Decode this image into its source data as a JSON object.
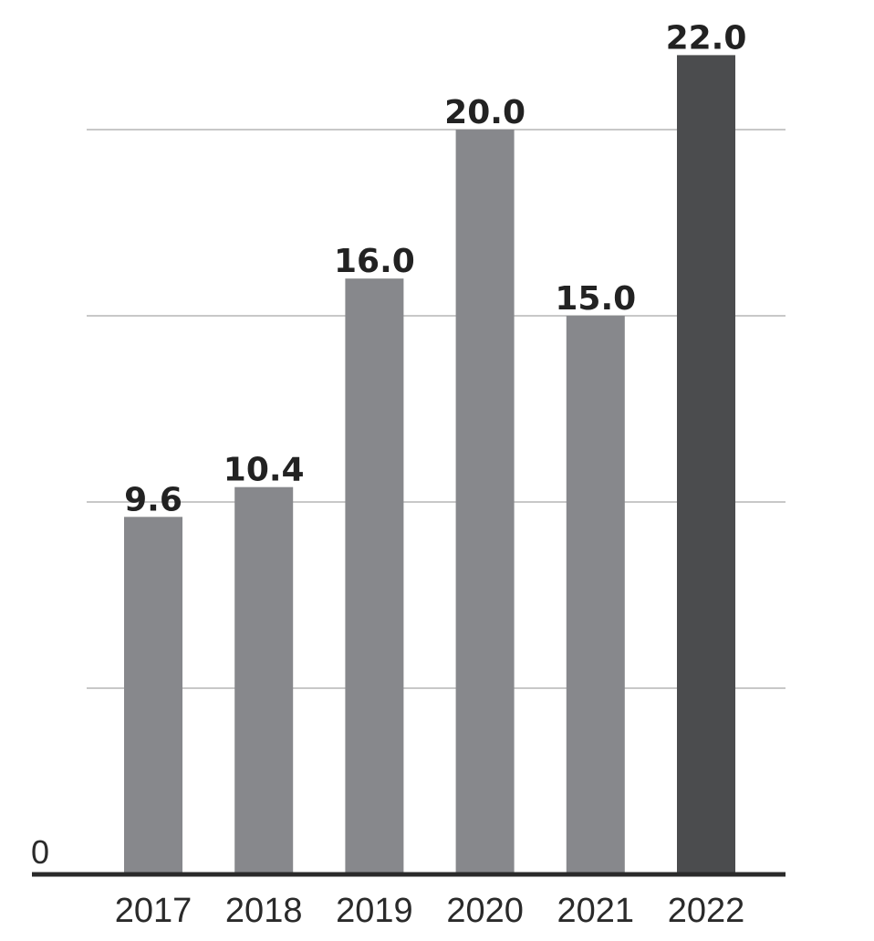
{
  "chart_data": {
    "type": "bar",
    "categories": [
      "2017",
      "2018",
      "2019",
      "2020",
      "2021",
      "2022"
    ],
    "values": [
      9.6,
      10.4,
      16.0,
      20.0,
      15.0,
      22.0
    ],
    "value_labels": [
      "9.6",
      "10.4",
      "16.0",
      "20.0",
      "15.0",
      "22.0"
    ],
    "title": "",
    "xlabel": "",
    "ylabel": "",
    "ylim": [
      0,
      20
    ],
    "gridlines": [
      5,
      10,
      15,
      20
    ],
    "y_tick_labels": [
      "0"
    ],
    "grid": true,
    "legend": "none",
    "colors": {
      "bar": "#87888c",
      "highlight_bar": "#4b4c4e",
      "grid": "#c8c8c8",
      "axis": "#2a2a2a"
    },
    "highlight_index": 5
  }
}
